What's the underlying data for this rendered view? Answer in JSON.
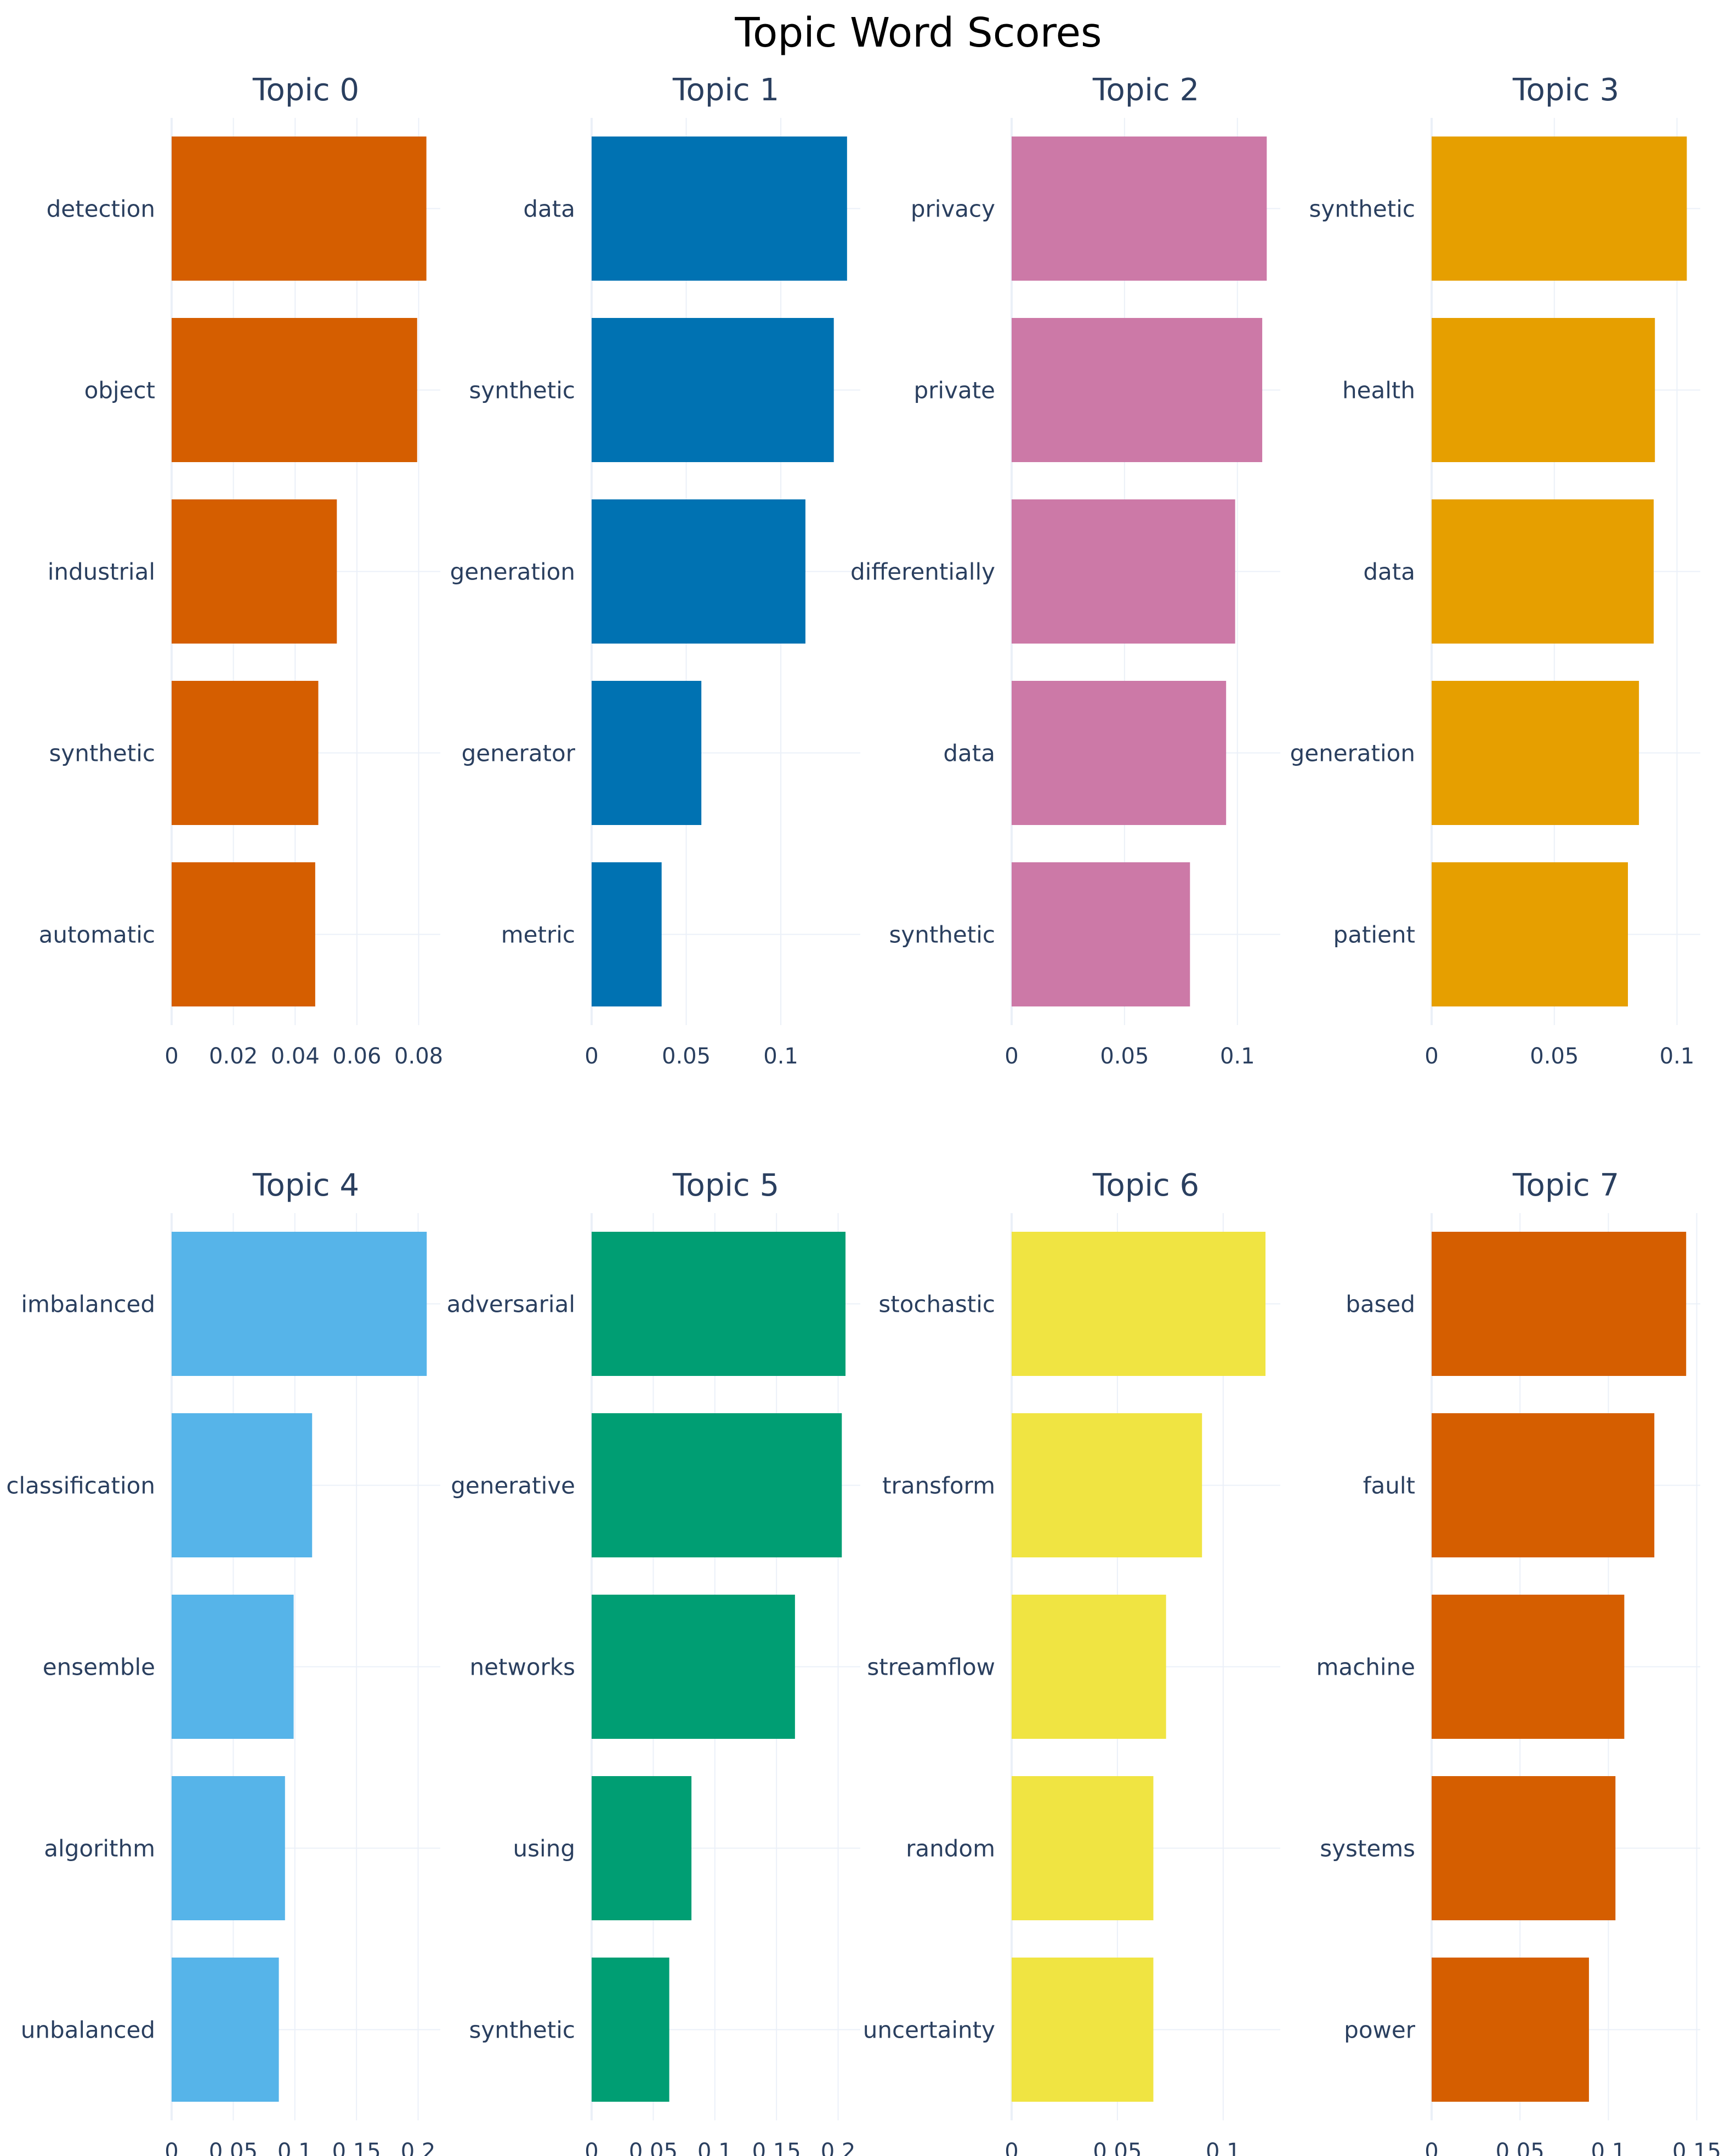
{
  "chart_data": {
    "type": "bar",
    "orientation": "horizontal",
    "title": "Topic Word Scores",
    "grid": true,
    "subplots": [
      {
        "title": "Topic 0",
        "color": "#D55E00",
        "categories": [
          "detection",
          "object",
          "industrial",
          "synthetic",
          "automatic"
        ],
        "values": [
          0.0825,
          0.0795,
          0.0535,
          0.0475,
          0.0465
        ],
        "xlim": [
          0,
          0.087
        ],
        "xticks": [
          0,
          0.02,
          0.04,
          0.06,
          0.08
        ],
        "xtick_labels": [
          "0",
          "0.02",
          "0.04",
          "0.06",
          "0.08"
        ]
      },
      {
        "title": "Topic 1",
        "color": "#0072B2",
        "categories": [
          "data",
          "synthetic",
          "generation",
          "generator",
          "metric"
        ],
        "values": [
          0.135,
          0.128,
          0.113,
          0.058,
          0.037
        ],
        "xlim": [
          0,
          0.142
        ],
        "xticks": [
          0,
          0.05,
          0.1
        ],
        "xtick_labels": [
          "0",
          "0.05",
          "0.1"
        ]
      },
      {
        "title": "Topic 2",
        "color": "#CC79A7",
        "categories": [
          "privacy",
          "private",
          "differentially",
          "data",
          "synthetic"
        ],
        "values": [
          0.113,
          0.111,
          0.099,
          0.095,
          0.079
        ],
        "xlim": [
          0,
          0.119
        ],
        "xticks": [
          0,
          0.05,
          0.1
        ],
        "xtick_labels": [
          "0",
          "0.05",
          "0.1"
        ]
      },
      {
        "title": "Topic 3",
        "color": "#E69F00",
        "categories": [
          "synthetic",
          "health",
          "data",
          "generation",
          "patient"
        ],
        "values": [
          0.104,
          0.091,
          0.0905,
          0.0845,
          0.08
        ],
        "xlim": [
          0,
          0.1095
        ],
        "xticks": [
          0,
          0.05,
          0.1
        ],
        "xtick_labels": [
          "0",
          "0.05",
          "0.1"
        ]
      },
      {
        "title": "Topic 4",
        "color": "#56B4E9",
        "categories": [
          "imbalanced",
          "classification",
          "ensemble",
          "algorithm",
          "unbalanced"
        ],
        "values": [
          0.207,
          0.114,
          0.099,
          0.092,
          0.087
        ],
        "xlim": [
          0,
          0.218
        ],
        "xticks": [
          0,
          0.05,
          0.1,
          0.15,
          0.2
        ],
        "xtick_labels": [
          "0",
          "0.05",
          "0.1",
          "0.15",
          "0.2"
        ]
      },
      {
        "title": "Topic 5",
        "color": "#009E73",
        "categories": [
          "adversarial",
          "generative",
          "networks",
          "using",
          "synthetic"
        ],
        "values": [
          0.206,
          0.203,
          0.165,
          0.081,
          0.063
        ],
        "xlim": [
          0,
          0.218
        ],
        "xticks": [
          0,
          0.05,
          0.1,
          0.15,
          0.2
        ],
        "xtick_labels": [
          "0",
          "0.05",
          "0.1",
          "0.15",
          "0.2"
        ]
      },
      {
        "title": "Topic 6",
        "color": "#F0E442",
        "categories": [
          "stochastic",
          "transform",
          "streamflow",
          "random",
          "uncertainty"
        ],
        "values": [
          0.12,
          0.09,
          0.073,
          0.067,
          0.067
        ],
        "xlim": [
          0,
          0.127
        ],
        "xticks": [
          0,
          0.05,
          0.1
        ],
        "xtick_labels": [
          "0",
          "0.05",
          "0.1"
        ]
      },
      {
        "title": "Topic 7",
        "color": "#D55E00",
        "categories": [
          "based",
          "fault",
          "machine",
          "systems",
          "power"
        ],
        "values": [
          0.144,
          0.126,
          0.109,
          0.104,
          0.089
        ],
        "xlim": [
          0,
          0.152
        ],
        "xticks": [
          0,
          0.05,
          0.1,
          0.15
        ],
        "xtick_labels": [
          "0",
          "0.05",
          "0.1",
          "0.15"
        ]
      }
    ]
  }
}
